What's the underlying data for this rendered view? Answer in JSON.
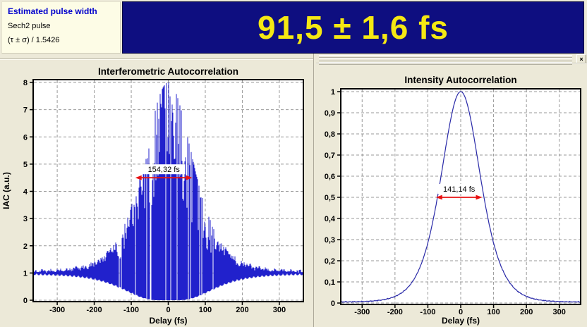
{
  "header": {
    "info": {
      "title": "Estimated pulse width",
      "pulse_shape": "Sech2 pulse",
      "deconvolution": "(τ ± σ) / 1.5426"
    },
    "result_value": "91,5 ± 1,6 fs",
    "close_label": "×"
  },
  "colors": {
    "app_bg": "#ece9d8",
    "info_bg": "#fdfce6",
    "info_title_blue": "#0000cc",
    "banner_bg": "#0e0e80",
    "banner_text": "#f5e813",
    "plot_bg": "#ffffff",
    "grid_gray": "#999999",
    "axis_black": "#000000",
    "iac_blue": "#2121cc",
    "ac_blue": "#2a2aa8",
    "arrow_red": "#e81212"
  },
  "chart_data": [
    {
      "type": "line",
      "subtype": "interferometric_autocorrelation_fringes",
      "title": "Interferometric Autocorrelation",
      "xlabel": "Delay (fs)",
      "ylabel": "IAC (a.u.)",
      "xlim": [
        -365,
        365
      ],
      "ylim": [
        0,
        8
      ],
      "xtick_values": [
        -300,
        -200,
        -100,
        0,
        100,
        200,
        300
      ],
      "xtick_labels": [
        "-300",
        "-200",
        "-100",
        "0",
        "100",
        "200",
        "300"
      ],
      "ytick_values": [
        0,
        1,
        2,
        3,
        4,
        5,
        6,
        7,
        8
      ],
      "ytick_labels": [
        "0",
        "1",
        "2",
        "3",
        "4",
        "5",
        "6",
        "7",
        "8"
      ],
      "grid": "dashed",
      "legend": false,
      "line_color": "#2121cc",
      "model": {
        "kind": "iac_fringes",
        "baseline": 1,
        "peak": 8,
        "g_tau0_fs": 80.07,
        "coherence_exp": 0.75
      },
      "annotation": {
        "text": "154,32 fs",
        "fwhm_fs": 154.32,
        "center_fs": -12,
        "at_y": 4.5,
        "color": "#e81212"
      }
    },
    {
      "type": "line",
      "subtype": "intensity_autocorrelation",
      "title": "Intensity Autocorrelation",
      "xlabel": "Delay (fs)",
      "ylabel": "",
      "xlim": [
        -365,
        365
      ],
      "ylim": [
        0,
        1
      ],
      "xtick_values": [
        -300,
        -200,
        -100,
        0,
        100,
        200,
        300
      ],
      "xtick_labels": [
        "-300",
        "-200",
        "-100",
        "0",
        "100",
        "200",
        "300"
      ],
      "ytick_values": [
        0,
        0.1,
        0.2,
        0.3,
        0.4,
        0.5,
        0.6,
        0.7,
        0.8,
        0.9,
        1
      ],
      "ytick_labels": [
        "0",
        "0,1",
        "0,2",
        "0,3",
        "0,4",
        "0,5",
        "0,6",
        "0,7",
        "0,8",
        "0,9",
        "1"
      ],
      "grid": "dashed",
      "legend": false,
      "line_color": "#2a2aa8",
      "model": {
        "kind": "sech2_ac",
        "g_tau0_fs": 80.07,
        "peak": 1,
        "baseline_noise": 0.006
      },
      "annotation": {
        "text": "141,14 fs",
        "fwhm_fs": 141.14,
        "center_fs": -5,
        "at_y": 0.5,
        "color": "#e81212"
      }
    }
  ]
}
